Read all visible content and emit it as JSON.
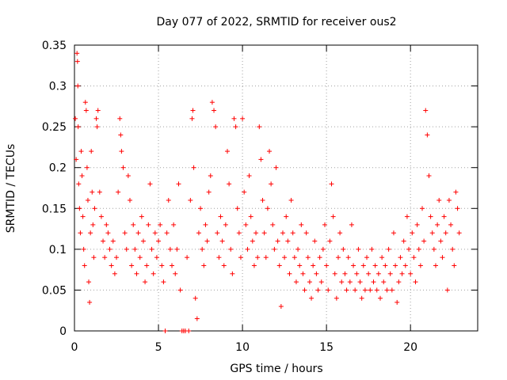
{
  "chart_data": {
    "type": "scatter",
    "title": "Day 077 of 2022, SRMTID for receiver ous2",
    "xlabel": "GPS time / hours",
    "ylabel": "SRMTID / TECUs",
    "xlim": [
      0,
      24
    ],
    "ylim": [
      0,
      0.35
    ],
    "xticks": [
      0,
      5,
      10,
      15,
      20
    ],
    "yticks": [
      0,
      0.05,
      0.1,
      0.15,
      0.2,
      0.25,
      0.3,
      0.35
    ],
    "xtick_labels": [
      "0",
      "5",
      "10",
      "15",
      "20"
    ],
    "ytick_labels": [
      "0",
      "0.05",
      "0.1",
      "0.15",
      "0.2",
      "0.25",
      "0.3",
      "0.35"
    ],
    "grid": true,
    "marker": "+",
    "color": "#ff0000",
    "series": [
      {
        "name": "SRMTID",
        "points": [
          [
            0.05,
            0.26
          ],
          [
            0.1,
            0.21
          ],
          [
            0.15,
            0.34
          ],
          [
            0.18,
            0.33
          ],
          [
            0.2,
            0.3
          ],
          [
            0.22,
            0.25
          ],
          [
            0.25,
            0.18
          ],
          [
            0.3,
            0.15
          ],
          [
            0.35,
            0.12
          ],
          [
            0.4,
            0.22
          ],
          [
            0.45,
            0.19
          ],
          [
            0.5,
            0.14
          ],
          [
            0.55,
            0.1
          ],
          [
            0.6,
            0.08
          ],
          [
            0.65,
            0.28
          ],
          [
            0.7,
            0.27
          ],
          [
            0.75,
            0.2
          ],
          [
            0.8,
            0.16
          ],
          [
            0.85,
            0.06
          ],
          [
            0.9,
            0.035
          ],
          [
            0.95,
            0.12
          ],
          [
            1.0,
            0.22
          ],
          [
            1.05,
            0.17
          ],
          [
            1.1,
            0.13
          ],
          [
            1.15,
            0.09
          ],
          [
            1.2,
            0.15
          ],
          [
            1.3,
            0.26
          ],
          [
            1.35,
            0.25
          ],
          [
            1.4,
            0.27
          ],
          [
            1.5,
            0.17
          ],
          [
            1.6,
            0.14
          ],
          [
            1.7,
            0.11
          ],
          [
            1.8,
            0.09
          ],
          [
            1.9,
            0.13
          ],
          [
            2.0,
            0.12
          ],
          [
            2.1,
            0.1
          ],
          [
            2.2,
            0.08
          ],
          [
            2.3,
            0.11
          ],
          [
            2.4,
            0.07
          ],
          [
            2.5,
            0.09
          ],
          [
            2.6,
            0.17
          ],
          [
            2.7,
            0.26
          ],
          [
            2.75,
            0.24
          ],
          [
            2.8,
            0.22
          ],
          [
            2.9,
            0.2
          ],
          [
            3.0,
            0.12
          ],
          [
            3.1,
            0.1
          ],
          [
            3.2,
            0.19
          ],
          [
            3.3,
            0.16
          ],
          [
            3.4,
            0.08
          ],
          [
            3.5,
            0.13
          ],
          [
            3.6,
            0.1
          ],
          [
            3.7,
            0.07
          ],
          [
            3.8,
            0.12
          ],
          [
            3.9,
            0.09
          ],
          [
            4.0,
            0.14
          ],
          [
            4.1,
            0.11
          ],
          [
            4.2,
            0.06
          ],
          [
            4.3,
            0.08
          ],
          [
            4.4,
            0.13
          ],
          [
            4.5,
            0.18
          ],
          [
            4.6,
            0.1
          ],
          [
            4.7,
            0.07
          ],
          [
            4.8,
            0.12
          ],
          [
            4.9,
            0.09
          ],
          [
            5.0,
            0.11
          ],
          [
            5.1,
            0.13
          ],
          [
            5.2,
            0.08
          ],
          [
            5.3,
            0.06
          ],
          [
            5.4,
            0.0
          ],
          [
            5.5,
            0.12
          ],
          [
            5.6,
            0.16
          ],
          [
            5.7,
            0.1
          ],
          [
            5.8,
            0.08
          ],
          [
            5.9,
            0.13
          ],
          [
            6.0,
            0.07
          ],
          [
            6.1,
            0.1
          ],
          [
            6.2,
            0.18
          ],
          [
            6.3,
            0.05
          ],
          [
            6.4,
            0.0
          ],
          [
            6.5,
            0.0
          ],
          [
            6.6,
            0.0
          ],
          [
            6.7,
            0.09
          ],
          [
            6.8,
            0.0
          ],
          [
            6.9,
            0.16
          ],
          [
            7.0,
            0.26
          ],
          [
            7.05,
            0.27
          ],
          [
            7.1,
            0.2
          ],
          [
            7.2,
            0.04
          ],
          [
            7.3,
            0.015
          ],
          [
            7.4,
            0.12
          ],
          [
            7.5,
            0.15
          ],
          [
            7.6,
            0.1
          ],
          [
            7.7,
            0.08
          ],
          [
            7.8,
            0.13
          ],
          [
            7.9,
            0.11
          ],
          [
            8.0,
            0.17
          ],
          [
            8.1,
            0.19
          ],
          [
            8.2,
            0.28
          ],
          [
            8.3,
            0.27
          ],
          [
            8.4,
            0.25
          ],
          [
            8.5,
            0.12
          ],
          [
            8.6,
            0.09
          ],
          [
            8.7,
            0.14
          ],
          [
            8.8,
            0.11
          ],
          [
            8.9,
            0.08
          ],
          [
            9.0,
            0.13
          ],
          [
            9.1,
            0.22
          ],
          [
            9.2,
            0.18
          ],
          [
            9.3,
            0.1
          ],
          [
            9.4,
            0.07
          ],
          [
            9.5,
            0.26
          ],
          [
            9.6,
            0.25
          ],
          [
            9.7,
            0.15
          ],
          [
            9.8,
            0.12
          ],
          [
            9.9,
            0.09
          ],
          [
            10.0,
            0.26
          ],
          [
            10.1,
            0.17
          ],
          [
            10.2,
            0.13
          ],
          [
            10.3,
            0.1
          ],
          [
            10.4,
            0.19
          ],
          [
            10.5,
            0.14
          ],
          [
            10.6,
            0.11
          ],
          [
            10.7,
            0.08
          ],
          [
            10.8,
            0.12
          ],
          [
            10.9,
            0.09
          ],
          [
            11.0,
            0.25
          ],
          [
            11.1,
            0.21
          ],
          [
            11.2,
            0.16
          ],
          [
            11.3,
            0.12
          ],
          [
            11.4,
            0.09
          ],
          [
            11.5,
            0.15
          ],
          [
            11.6,
            0.22
          ],
          [
            11.7,
            0.18
          ],
          [
            11.8,
            0.13
          ],
          [
            11.9,
            0.1
          ],
          [
            12.0,
            0.2
          ],
          [
            12.1,
            0.11
          ],
          [
            12.2,
            0.08
          ],
          [
            12.3,
            0.03
          ],
          [
            12.4,
            0.12
          ],
          [
            12.5,
            0.09
          ],
          [
            12.6,
            0.14
          ],
          [
            12.7,
            0.11
          ],
          [
            12.8,
            0.07
          ],
          [
            12.9,
            0.16
          ],
          [
            13.0,
            0.12
          ],
          [
            13.1,
            0.09
          ],
          [
            13.2,
            0.06
          ],
          [
            13.3,
            0.1
          ],
          [
            13.4,
            0.08
          ],
          [
            13.5,
            0.13
          ],
          [
            13.6,
            0.07
          ],
          [
            13.7,
            0.05
          ],
          [
            13.8,
            0.12
          ],
          [
            13.9,
            0.09
          ],
          [
            14.0,
            0.06
          ],
          [
            14.1,
            0.04
          ],
          [
            14.2,
            0.08
          ],
          [
            14.3,
            0.11
          ],
          [
            14.4,
            0.07
          ],
          [
            14.5,
            0.05
          ],
          [
            14.6,
            0.09
          ],
          [
            14.7,
            0.06
          ],
          [
            14.8,
            0.1
          ],
          [
            14.9,
            0.13
          ],
          [
            15.0,
            0.08
          ],
          [
            15.1,
            0.05
          ],
          [
            15.2,
            0.11
          ],
          [
            15.3,
            0.18
          ],
          [
            15.4,
            0.14
          ],
          [
            15.5,
            0.07
          ],
          [
            15.6,
            0.04
          ],
          [
            15.7,
            0.09
          ],
          [
            15.8,
            0.12
          ],
          [
            15.9,
            0.06
          ],
          [
            16.0,
            0.1
          ],
          [
            16.1,
            0.07
          ],
          [
            16.2,
            0.05
          ],
          [
            16.3,
            0.09
          ],
          [
            16.4,
            0.06
          ],
          [
            16.5,
            0.13
          ],
          [
            16.6,
            0.08
          ],
          [
            16.7,
            0.05
          ],
          [
            16.8,
            0.07
          ],
          [
            16.9,
            0.1
          ],
          [
            17.0,
            0.06
          ],
          [
            17.1,
            0.04
          ],
          [
            17.2,
            0.08
          ],
          [
            17.3,
            0.05
          ],
          [
            17.4,
            0.09
          ],
          [
            17.5,
            0.07
          ],
          [
            17.6,
            0.05
          ],
          [
            17.7,
            0.1
          ],
          [
            17.8,
            0.06
          ],
          [
            17.9,
            0.08
          ],
          [
            18.0,
            0.05
          ],
          [
            18.1,
            0.07
          ],
          [
            18.2,
            0.04
          ],
          [
            18.3,
            0.09
          ],
          [
            18.4,
            0.06
          ],
          [
            18.5,
            0.08
          ],
          [
            18.6,
            0.05
          ],
          [
            18.7,
            0.1
          ],
          [
            18.8,
            0.07
          ],
          [
            18.9,
            0.05
          ],
          [
            19.0,
            0.12
          ],
          [
            19.1,
            0.08
          ],
          [
            19.2,
            0.035
          ],
          [
            19.3,
            0.06
          ],
          [
            19.4,
            0.09
          ],
          [
            19.5,
            0.07
          ],
          [
            19.6,
            0.11
          ],
          [
            19.7,
            0.08
          ],
          [
            19.8,
            0.14
          ],
          [
            19.9,
            0.1
          ],
          [
            20.0,
            0.07
          ],
          [
            20.1,
            0.12
          ],
          [
            20.2,
            0.09
          ],
          [
            20.3,
            0.06
          ],
          [
            20.4,
            0.13
          ],
          [
            20.5,
            0.1
          ],
          [
            20.6,
            0.08
          ],
          [
            20.7,
            0.15
          ],
          [
            20.8,
            0.11
          ],
          [
            20.9,
            0.27
          ],
          [
            21.0,
            0.24
          ],
          [
            21.1,
            0.19
          ],
          [
            21.2,
            0.14
          ],
          [
            21.3,
            0.12
          ],
          [
            21.4,
            0.1
          ],
          [
            21.5,
            0.08
          ],
          [
            21.6,
            0.13
          ],
          [
            21.7,
            0.16
          ],
          [
            21.8,
            0.11
          ],
          [
            21.9,
            0.09
          ],
          [
            22.0,
            0.14
          ],
          [
            22.1,
            0.12
          ],
          [
            22.2,
            0.05
          ],
          [
            22.3,
            0.16
          ],
          [
            22.4,
            0.13
          ],
          [
            22.5,
            0.1
          ],
          [
            22.6,
            0.08
          ],
          [
            22.7,
            0.17
          ],
          [
            22.8,
            0.15
          ],
          [
            22.9,
            0.12
          ]
        ]
      }
    ]
  }
}
